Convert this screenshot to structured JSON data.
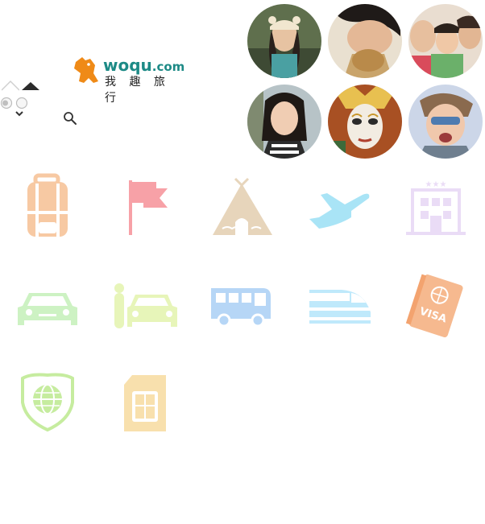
{
  "logo": {
    "brand": "woqu",
    "domain": ".com",
    "tagline": "我 趣 旅 行",
    "brand_color": "#1d8a86",
    "mascot_color": "#ef8a17"
  },
  "controls": {
    "search_icon": "search-icon",
    "collapse_icon": "caret-up-icon",
    "expand_icon": "chevron-down-icon"
  },
  "avatars": [
    {
      "name": "avatar-girl-bear-hat",
      "bg": "#6b7a5a"
    },
    {
      "name": "avatar-boy-eating",
      "bg": "#d9cab0"
    },
    {
      "name": "avatar-family",
      "bg": "#d8c6b3"
    },
    {
      "name": "avatar-woman-smiling",
      "bg": "#b8c1c7"
    },
    {
      "name": "avatar-carnival-mask",
      "bg": "#b35a2b"
    },
    {
      "name": "avatar-man-wind",
      "bg": "#c9d3e6"
    }
  ],
  "services": [
    {
      "name": "backpack-icon",
      "color": "#f7c9a3"
    },
    {
      "name": "flag-icon",
      "color": "#f7a1a7"
    },
    {
      "name": "tent-icon",
      "color": "#e7d5bb"
    },
    {
      "name": "airplane-icon",
      "color": "#a9e4f6"
    },
    {
      "name": "hotel-icon",
      "color": "#eadcf6"
    },
    {
      "name": "car-icon",
      "color": "#cdf2c3"
    },
    {
      "name": "car-with-driver-icon",
      "color": "#e7f5b9"
    },
    {
      "name": "bus-icon",
      "color": "#b6d6f6"
    },
    {
      "name": "train-icon",
      "color": "#bfe9fb"
    },
    {
      "name": "visa-icon",
      "color": "#f6b98f"
    },
    {
      "name": "insurance-shield-icon",
      "color": "#c6ec9f"
    },
    {
      "name": "sim-card-icon",
      "color": "#f8e0ad"
    }
  ]
}
